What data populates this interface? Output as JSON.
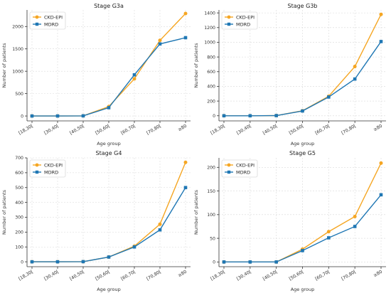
{
  "chart_data": [
    {
      "type": "line",
      "title": "Stage G3a",
      "xlabel": "Age group",
      "ylabel": "Number of patients",
      "categories": [
        "[18,30[",
        "[30,40[",
        "[40,50[",
        "[50,60[",
        "[60,70[",
        "[70,80[",
        "≥80"
      ],
      "series": [
        {
          "name": "CKD-EPI",
          "values": [
            0,
            0,
            3,
            210,
            830,
            1690,
            2290
          ]
        },
        {
          "name": "MDRD",
          "values": [
            0,
            0,
            3,
            185,
            920,
            1610,
            1750
          ]
        }
      ],
      "yticks": [
        0,
        500,
        1000,
        1500,
        2000
      ],
      "ylim": [
        -110,
        2370
      ],
      "grid": true,
      "legend": "top-left"
    },
    {
      "type": "line",
      "title": "Stage G3b",
      "xlabel": "Age group",
      "ylabel": "Number of patients",
      "categories": [
        "[18,30[",
        "[30,40[",
        "[40,50[",
        "[50,60[",
        "[60,70[",
        "[70,80[",
        "≥80"
      ],
      "series": [
        {
          "name": "CKD-EPI",
          "values": [
            0,
            0,
            2,
            68,
            265,
            670,
            1380
          ]
        },
        {
          "name": "MDRD",
          "values": [
            0,
            0,
            2,
            65,
            255,
            500,
            1010
          ]
        }
      ],
      "yticks": [
        0,
        200,
        400,
        600,
        800,
        1000,
        1200,
        1400
      ],
      "ylim": [
        -70,
        1440
      ],
      "grid": true,
      "legend": "top-left"
    },
    {
      "type": "line",
      "title": "Stage G4",
      "xlabel": "Age group",
      "ylabel": "Number of patients",
      "categories": [
        "[18,30[",
        "[30,40[",
        "[40,50[",
        "[50,60[",
        "[60,70[",
        "[70,80[",
        "≥80"
      ],
      "series": [
        {
          "name": "CKD-EPI",
          "values": [
            0,
            0,
            1,
            32,
            105,
            253,
            670
          ]
        },
        {
          "name": "MDRD",
          "values": [
            0,
            0,
            1,
            32,
            100,
            215,
            500
          ]
        }
      ],
      "yticks": [
        0,
        100,
        200,
        300,
        400,
        500,
        600,
        700
      ],
      "ylim": [
        -33,
        700
      ],
      "grid": true,
      "legend": "top-left"
    },
    {
      "type": "line",
      "title": "Stage G5",
      "xlabel": "Age group",
      "ylabel": "Number of patients",
      "categories": [
        "[18,30[",
        "[30,40[",
        "[40,50[",
        "[50,60[",
        "[60,70[",
        "[70,80[",
        "≥80"
      ],
      "series": [
        {
          "name": "CKD-EPI",
          "values": [
            0,
            0,
            0,
            27,
            64,
            96,
            209
          ]
        },
        {
          "name": "MDRD",
          "values": [
            0,
            0,
            0,
            24,
            51,
            75,
            142
          ]
        }
      ],
      "yticks": [
        0,
        50,
        100,
        150,
        200
      ],
      "ylim": [
        -10,
        220
      ],
      "grid": true,
      "legend": "top-left"
    }
  ],
  "colors": {
    "CKD-EPI": "#f5a623",
    "MDRD": "#1f77b4"
  }
}
